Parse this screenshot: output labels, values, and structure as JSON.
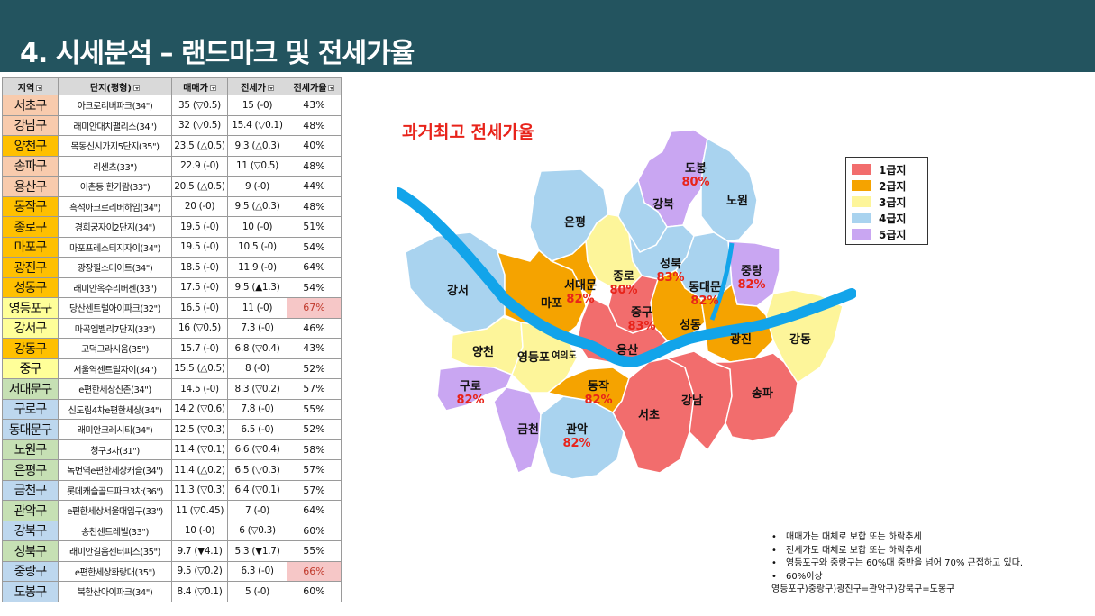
{
  "header": {
    "title": "4. 시세분석 – 랜드마크 및 전세가율",
    "bg_color": "#23545f"
  },
  "table": {
    "headers": [
      "지역",
      "단지(평형)",
      "매매가",
      "전세가",
      "전세가율"
    ],
    "rows": [
      {
        "region": "서초구",
        "complex": "아크로리버파크(34\")",
        "sale": "35 (▽0.5)",
        "jeonse": "15 (-0)",
        "rate": "43%",
        "color": "#f8cbad"
      },
      {
        "region": "강남구",
        "complex": "래미안대치팰리스(34\")",
        "sale": "32 (▽0.5)",
        "jeonse": "15.4 (▽0.1)",
        "rate": "48%",
        "color": "#f8cbad"
      },
      {
        "region": "양천구",
        "complex": "목동신시가지5단지(35\")",
        "sale": "23.5 (△0.5)",
        "jeonse": "9.3 (△0.3)",
        "rate": "40%",
        "color": "#ffc000"
      },
      {
        "region": "송파구",
        "complex": "리센츠(33\")",
        "sale": "22.9 (-0)",
        "jeonse": "11 (▽0.5)",
        "rate": "48%",
        "color": "#f8cbad"
      },
      {
        "region": "용산구",
        "complex": "이촌동 한가람(33\")",
        "sale": "20.5 (△0.5)",
        "jeonse": "9 (-0)",
        "rate": "44%",
        "color": "#f8cbad"
      },
      {
        "region": "동작구",
        "complex": "흑석아크로리버하임(34\")",
        "sale": "20 (-0)",
        "jeonse": "9.5 (△0.3)",
        "rate": "48%",
        "color": "#ffc000"
      },
      {
        "region": "종로구",
        "complex": "경희궁자이2단지(34\")",
        "sale": "19.5 (-0)",
        "jeonse": "10 (-0)",
        "rate": "51%",
        "color": "#ffc000"
      },
      {
        "region": "마포구",
        "complex": "마포프레스티지자이(34\")",
        "sale": "19.5 (-0)",
        "jeonse": "10.5 (-0)",
        "rate": "54%",
        "color": "#ffc000"
      },
      {
        "region": "광진구",
        "complex": "광장힐스테이트(34\")",
        "sale": "18.5 (-0)",
        "jeonse": "11.9 (-0)",
        "rate": "64%",
        "color": "#ffc000"
      },
      {
        "region": "성동구",
        "complex": "래미안옥수리버젠(33\")",
        "sale": "17.5 (-0)",
        "jeonse": "9.5 (▲1.3)",
        "rate": "54%",
        "color": "#ffc000"
      },
      {
        "region": "영등포구",
        "complex": "당산센트럴아이파크(32\")",
        "sale": "16.5 (-0)",
        "jeonse": "11 (-0)",
        "rate": "67%",
        "color": "#ffff99",
        "highlight": true
      },
      {
        "region": "강서구",
        "complex": "마곡엠벨리7단지(33\")",
        "sale": "16 (▽0.5)",
        "jeonse": "7.3 (-0)",
        "rate": "46%",
        "color": "#ffff99"
      },
      {
        "region": "강동구",
        "complex": "고덕그라시움(35\")",
        "sale": "15.7 (-0)",
        "jeonse": "6.8 (▽0.4)",
        "rate": "43%",
        "color": "#ffc000"
      },
      {
        "region": "중구",
        "complex": "서울역센트럴자이(34\")",
        "sale": "15.5 (△0.5)",
        "jeonse": "8 (-0)",
        "rate": "52%",
        "color": "#ffff99"
      },
      {
        "region": "서대문구",
        "complex": "e편한세상신촌(34\")",
        "sale": "14.5 (-0)",
        "jeonse": "8.3 (▽0.2)",
        "rate": "57%",
        "color": "#c6e0b4"
      },
      {
        "region": "구로구",
        "complex": "신도림4차e편한세상(34\")",
        "sale": "14.2 (▽0.6)",
        "jeonse": "7.8 (-0)",
        "rate": "55%",
        "color": "#bdd7ee"
      },
      {
        "region": "동대문구",
        "complex": "래미안크레시티(34\")",
        "sale": "12.5 (▽0.3)",
        "jeonse": "6.5 (-0)",
        "rate": "52%",
        "color": "#bdd7ee"
      },
      {
        "region": "노원구",
        "complex": "청구3차(31\")",
        "sale": "11.4 (▽0.1)",
        "jeonse": "6.6 (▽0.4)",
        "rate": "58%",
        "color": "#c6e0b4"
      },
      {
        "region": "은평구",
        "complex": "녹번역e편한세상캐슬(34\")",
        "sale": "11.4 (△0.2)",
        "jeonse": "6.5 (▽0.3)",
        "rate": "57%",
        "color": "#c6e0b4"
      },
      {
        "region": "금천구",
        "complex": "롯데캐슬골드파크3차(36\")",
        "sale": "11.3 (▽0.3)",
        "jeonse": "6.4 (▽0.1)",
        "rate": "57%",
        "color": "#bdd7ee"
      },
      {
        "region": "관악구",
        "complex": "e편한세상서울대입구(33\")",
        "sale": "11 (▽0.45)",
        "jeonse": "7 (-0)",
        "rate": "64%",
        "color": "#c6e0b4"
      },
      {
        "region": "강북구",
        "complex": "송천센트레빌(33\")",
        "sale": "10 (-0)",
        "jeonse": "6 (▽0.3)",
        "rate": "60%",
        "color": "#bdd7ee"
      },
      {
        "region": "성북구",
        "complex": "래미안길음센터피스(35\")",
        "sale": "9.7 (▼4.1)",
        "jeonse": "5.3 (▼1.7)",
        "rate": "55%",
        "color": "#c6e0b4"
      },
      {
        "region": "중랑구",
        "complex": "e편한세상화랑대(35\")",
        "sale": "9.5 (▽0.2)",
        "jeonse": "6.3 (-0)",
        "rate": "66%",
        "color": "#bdd7ee",
        "highlight": true
      },
      {
        "region": "도봉구",
        "complex": "북한산아이파크(34\")",
        "sale": "8.4 (▽0.1)",
        "jeonse": "5 (-0)",
        "rate": "60%",
        "color": "#bdd7ee"
      }
    ]
  },
  "map": {
    "title": "과거최고 전세가율",
    "districts": [
      {
        "name": "도봉",
        "pct": "80%"
      },
      {
        "name": "강북",
        "pct": ""
      },
      {
        "name": "노원",
        "pct": ""
      },
      {
        "name": "은평",
        "pct": ""
      },
      {
        "name": "성북",
        "pct": "83%"
      },
      {
        "name": "종로",
        "pct": "80%"
      },
      {
        "name": "중랑",
        "pct": "82%"
      },
      {
        "name": "서대문",
        "pct": "82%"
      },
      {
        "name": "동대문",
        "pct": "82%"
      },
      {
        "name": "강서",
        "pct": ""
      },
      {
        "name": "마포",
        "pct": ""
      },
      {
        "name": "중구",
        "pct": "83%"
      },
      {
        "name": "성동",
        "pct": ""
      },
      {
        "name": "광진",
        "pct": ""
      },
      {
        "name": "강동",
        "pct": ""
      },
      {
        "name": "양천",
        "pct": ""
      },
      {
        "name": "용산",
        "pct": ""
      },
      {
        "name": "영등포",
        "pct": ""
      },
      {
        "name": "여의도",
        "pct": ""
      },
      {
        "name": "구로",
        "pct": "82%"
      },
      {
        "name": "동작",
        "pct": "82%"
      },
      {
        "name": "강남",
        "pct": ""
      },
      {
        "name": "송파",
        "pct": ""
      },
      {
        "name": "서초",
        "pct": ""
      },
      {
        "name": "금천",
        "pct": ""
      },
      {
        "name": "관악",
        "pct": "82%"
      }
    ]
  },
  "legend": [
    {
      "label": "1급지",
      "color": "#f26d6d"
    },
    {
      "label": "2급지",
      "color": "#f5a300"
    },
    {
      "label": "3급지",
      "color": "#fdf59a"
    },
    {
      "label": "4급지",
      "color": "#a9d3ef"
    },
    {
      "label": "5급지",
      "color": "#c9a6f2"
    }
  ],
  "notes": [
    "매매가는 대체로 보합 또는 하락추세",
    "전세가도 대체로 보합 또는 하락추세",
    "영등포구와 중랑구는 60%대 중반을 넘어 70% 근접하고 있다.",
    "60%이상"
  ],
  "notes_footer": "영등포구)중랑구)광진구=관악구)강북구=도봉구"
}
